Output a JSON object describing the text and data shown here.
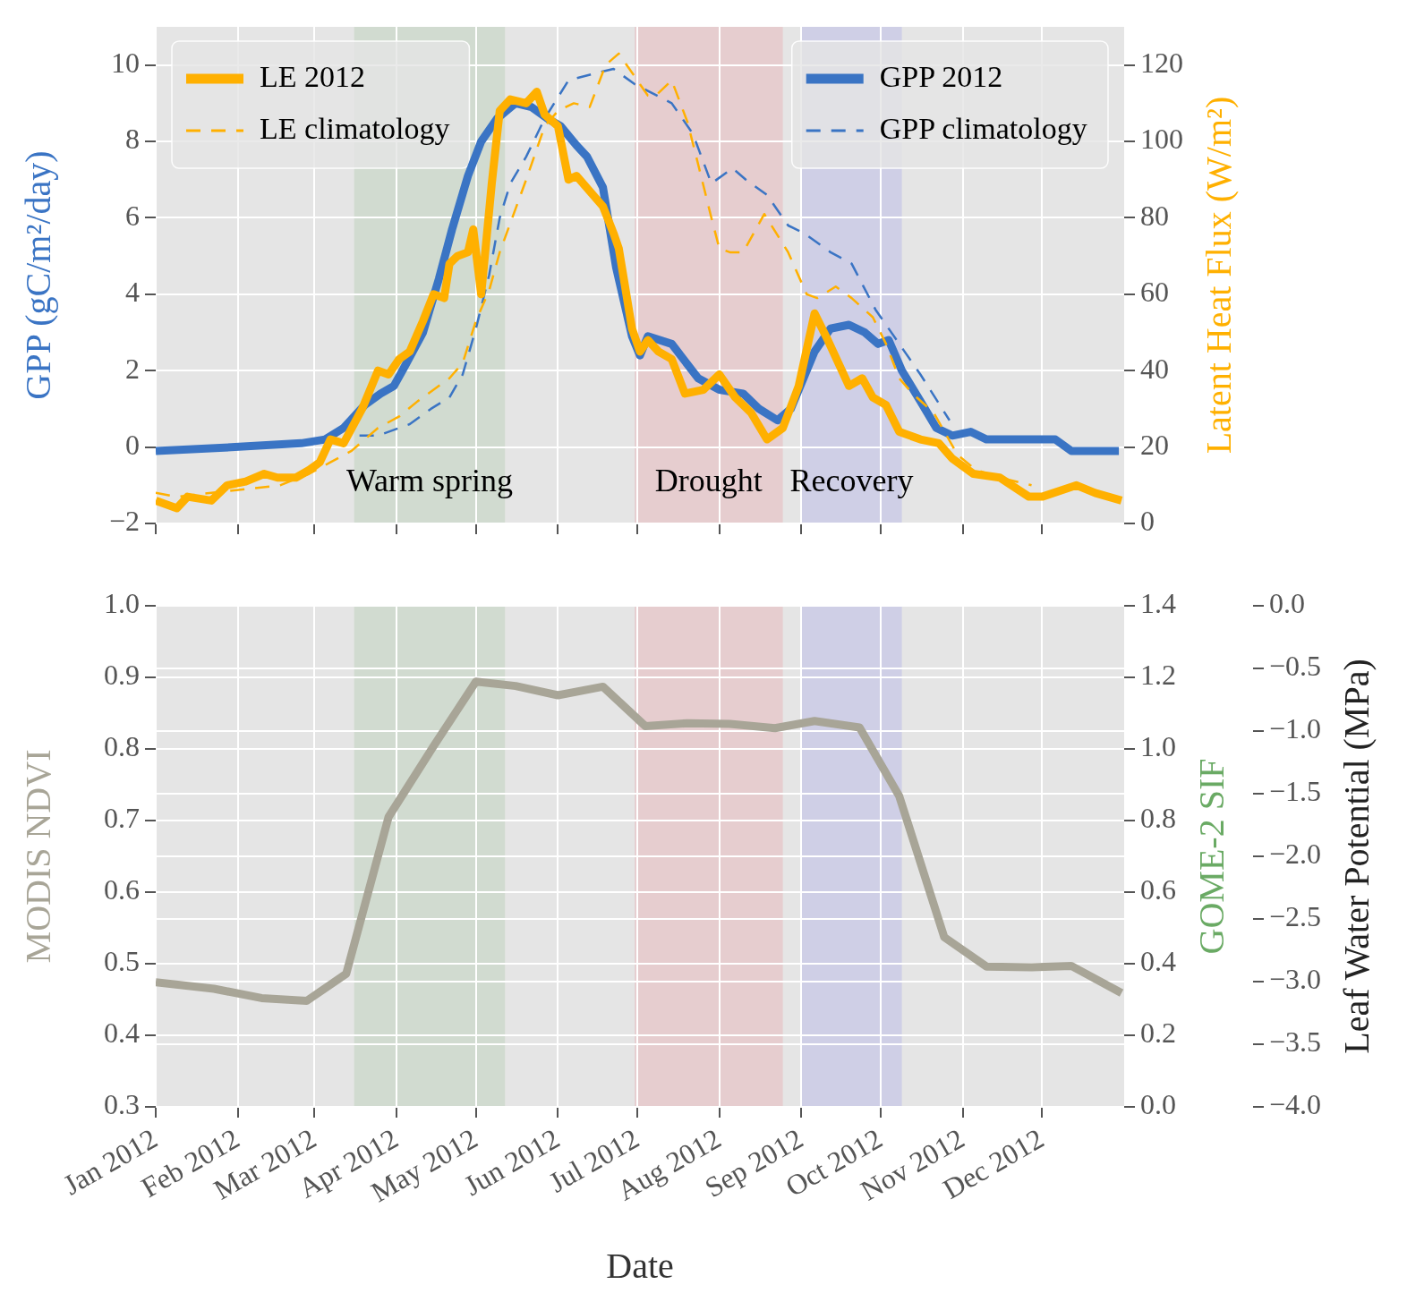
{
  "chart_data": [
    {
      "type": "line",
      "ylabel": "GPP (gC/m²/day)",
      "y2label": "Latent Heat Flux (W/m²)",
      "xlim": [
        "2012-01-01",
        "2013-01-01"
      ],
      "xticks": [
        {
          "value": "2012-01-01",
          "label": null
        },
        {
          "value": "2012-02-01",
          "label": null
        },
        {
          "value": "2012-03-01",
          "label": null
        },
        {
          "value": "2012-04-01",
          "label": null
        },
        {
          "value": "2012-05-01",
          "label": null
        },
        {
          "value": "2012-06-01",
          "label": null
        },
        {
          "value": "2012-07-01",
          "label": null
        },
        {
          "value": "2012-08-01",
          "label": null
        },
        {
          "value": "2012-09-01",
          "label": null
        },
        {
          "value": "2012-10-01",
          "label": null
        },
        {
          "value": "2012-11-01",
          "label": null
        },
        {
          "value": "2012-12-01",
          "label": null
        }
      ],
      "ylim": [
        -2,
        11
      ],
      "yticks": [
        {
          "value": -2,
          "label": "−2"
        },
        0,
        2,
        4,
        6,
        8,
        10
      ],
      "y2lim": [
        0,
        130
      ],
      "y2ticks": [
        0,
        20,
        40,
        60,
        80,
        100,
        120
      ],
      "tick_labels": "y",
      "grid": true,
      "legend": "top",
      "marker": "none",
      "bands": [
        {
          "axis": "x",
          "from": "2012-03-16",
          "to": "2012-05-12",
          "label": "Warm spring",
          "color": "#d1dbd0"
        },
        {
          "axis": "x",
          "from": "2012-06-30",
          "to": "2012-08-25",
          "label": "Drought",
          "color": "#e6cdcf"
        },
        {
          "axis": "x",
          "from": "2012-09-01",
          "to": "2012-10-09",
          "label": "Recovery",
          "color": "#cfcfe6"
        }
      ],
      "series": [
        {
          "name": "LE 2012",
          "color": "#ffb000",
          "axis": "y2",
          "line_style": "solid",
          "x": [
            "2012-01-01",
            "2012-01-09",
            "2012-01-13",
            "2012-01-22",
            "2012-01-28",
            "2012-02-04",
            "2012-02-11",
            "2012-02-16",
            "2012-02-23",
            "2012-02-28",
            "2012-03-03",
            "2012-03-07",
            "2012-03-12",
            "2012-03-19",
            "2012-03-25",
            "2012-03-29",
            "2012-04-02",
            "2012-04-06",
            "2012-04-11",
            "2012-04-15",
            "2012-04-19",
            "2012-04-21",
            "2012-04-24",
            "2012-04-28",
            "2012-04-30",
            "2012-05-03",
            "2012-05-07",
            "2012-05-10",
            "2012-05-14",
            "2012-05-20",
            "2012-05-24",
            "2012-05-27",
            "2012-06-01",
            "2012-06-05",
            "2012-06-08",
            "2012-06-18",
            "2012-06-22",
            "2012-06-24",
            "2012-06-29",
            "2012-07-02",
            "2012-07-05",
            "2012-07-09",
            "2012-07-14",
            "2012-07-19",
            "2012-07-26",
            "2012-08-01",
            "2012-08-07",
            "2012-08-13",
            "2012-08-19",
            "2012-08-25",
            "2012-08-31",
            "2012-09-06",
            "2012-09-11",
            "2012-09-19",
            "2012-09-24",
            "2012-09-28",
            "2012-10-03",
            "2012-10-08",
            "2012-10-16",
            "2012-10-23",
            "2012-10-28",
            "2012-11-05",
            "2012-11-15",
            "2012-11-26",
            "2012-12-01",
            "2012-12-14",
            "2012-12-21",
            "2012-12-31"
          ],
          "values": [
            6,
            4,
            7,
            6,
            10,
            11,
            13,
            12,
            12,
            14,
            16,
            22,
            21,
            30,
            40,
            39,
            43,
            45,
            53,
            60,
            59,
            68,
            70,
            71,
            77,
            60,
            89,
            108,
            111,
            110,
            113,
            107,
            104,
            90,
            91,
            83,
            76,
            72,
            51,
            45,
            48,
            45,
            43,
            34,
            35,
            39,
            33,
            29,
            22,
            25,
            36,
            55,
            48,
            36,
            38,
            33,
            31,
            24,
            22,
            21,
            17,
            13,
            12,
            7,
            7,
            10,
            8,
            6
          ]
        },
        {
          "name": "LE climatology",
          "color": "#ffb000",
          "axis": "y2",
          "line_style": "dashed",
          "x": [
            "2012-01-01",
            "2012-01-09",
            "2012-02-17",
            "2012-02-28",
            "2012-03-07",
            "2012-03-15",
            "2012-03-25",
            "2012-04-02",
            "2012-04-09",
            "2012-04-21",
            "2012-04-26",
            "2012-05-01",
            "2012-05-06",
            "2012-05-10",
            "2012-05-20",
            "2012-05-27",
            "2012-06-01",
            "2012-06-07",
            "2012-06-13",
            "2012-06-19",
            "2012-06-24",
            "2012-07-05",
            "2012-07-08",
            "2012-07-14",
            "2012-07-20",
            "2012-07-24",
            "2012-07-29",
            "2012-08-01",
            "2012-08-05",
            "2012-08-10",
            "2012-08-18",
            "2012-08-27",
            "2012-09-03",
            "2012-09-07",
            "2012-09-14",
            "2012-09-20",
            "2012-09-28",
            "2012-10-03",
            "2012-10-08",
            "2012-10-13",
            "2012-10-21",
            "2012-10-30",
            "2012-11-06",
            "2012-11-15",
            "2012-11-27"
          ],
          "values": [
            8,
            7,
            10,
            13,
            16,
            19,
            25,
            28,
            32,
            38,
            42,
            53,
            61,
            71,
            90,
            104,
            108,
            110,
            109,
            120,
            123,
            112,
            112,
            116,
            105,
            94,
            80,
            72,
            71,
            71,
            81,
            71,
            60,
            59,
            62,
            59,
            54,
            47,
            38,
            34,
            29,
            18,
            14,
            12,
            10
          ]
        },
        {
          "name": "GPP 2012",
          "color": "#3a74c4",
          "line_style": "solid",
          "x": [
            "2012-01-01",
            "2012-01-31",
            "2012-02-25",
            "2012-03-05",
            "2012-03-12",
            "2012-03-20",
            "2012-03-26",
            "2012-03-31",
            "2012-04-04",
            "2012-04-11",
            "2012-04-17",
            "2012-04-22",
            "2012-04-28",
            "2012-05-03",
            "2012-05-09",
            "2012-05-16",
            "2012-05-22",
            "2012-05-28",
            "2012-06-02",
            "2012-06-08",
            "2012-06-12",
            "2012-06-18",
            "2012-06-23",
            "2012-06-29",
            "2012-07-02",
            "2012-07-05",
            "2012-07-14",
            "2012-07-24",
            "2012-08-01",
            "2012-08-10",
            "2012-08-16",
            "2012-08-23",
            "2012-08-28",
            "2012-09-06",
            "2012-09-12",
            "2012-09-19",
            "2012-09-25",
            "2012-09-30",
            "2012-10-04",
            "2012-10-09",
            "2012-10-16",
            "2012-10-22",
            "2012-10-28",
            "2012-11-04",
            "2012-11-10",
            "2012-11-23",
            "2012-12-06",
            "2012-12-12",
            "2012-12-30"
          ],
          "values": [
            -0.1,
            0.0,
            0.1,
            0.2,
            0.5,
            1.1,
            1.4,
            1.6,
            2.1,
            3.0,
            4.4,
            5.7,
            7.1,
            8.0,
            8.6,
            9.0,
            8.9,
            8.6,
            8.4,
            7.9,
            7.6,
            6.8,
            4.7,
            2.9,
            2.4,
            2.9,
            2.7,
            1.8,
            1.5,
            1.4,
            1.0,
            0.7,
            1.0,
            2.5,
            3.1,
            3.2,
            3.0,
            2.7,
            2.8,
            2.0,
            1.2,
            0.5,
            0.3,
            0.4,
            0.2,
            0.2,
            0.2,
            -0.1,
            -0.1
          ]
        },
        {
          "name": "GPP climatology",
          "color": "#3a74c4",
          "line_style": "dashed",
          "x": [
            "2012-03-18",
            "2012-03-25",
            "2012-04-02",
            "2012-04-06",
            "2012-04-14",
            "2012-04-21",
            "2012-04-26",
            "2012-05-01",
            "2012-05-06",
            "2012-05-10",
            "2012-05-14",
            "2012-05-20",
            "2012-05-27",
            "2012-06-05",
            "2012-06-16",
            "2012-06-22",
            "2012-06-30",
            "2012-07-14",
            "2012-07-22",
            "2012-07-29",
            "2012-08-06",
            "2012-08-11",
            "2012-08-19",
            "2012-08-27",
            "2012-09-02",
            "2012-09-12",
            "2012-09-20",
            "2012-09-29",
            "2012-10-09",
            "2012-10-16",
            "2012-10-27"
          ],
          "values": [
            0.3,
            0.3,
            0.5,
            0.6,
            1.0,
            1.3,
            1.9,
            3.1,
            4.5,
            6.0,
            6.9,
            7.6,
            8.6,
            9.6,
            9.8,
            9.9,
            9.5,
            9.0,
            8.2,
            6.9,
            7.3,
            7.0,
            6.6,
            5.8,
            5.6,
            5.1,
            4.8,
            3.6,
            2.6,
            1.9,
            0.7
          ]
        }
      ]
    },
    {
      "type": "line",
      "xlabel": "Date",
      "ylabel": "MODIS NDVI",
      "y2label": "GOME-2 SIF",
      "y3label": "Leaf Water Potential (MPa)",
      "xlim": [
        "2012-01-01",
        "2013-01-01"
      ],
      "xticks": [
        {
          "value": "2012-01-01",
          "label": "Jan 2012"
        },
        {
          "value": "2012-02-01",
          "label": "Feb 2012"
        },
        {
          "value": "2012-03-01",
          "label": "Mar 2012"
        },
        {
          "value": "2012-04-01",
          "label": "Apr 2012"
        },
        {
          "value": "2012-05-01",
          "label": "May 2012"
        },
        {
          "value": "2012-06-01",
          "label": "Jun 2012"
        },
        {
          "value": "2012-07-01",
          "label": "Jul 2012"
        },
        {
          "value": "2012-08-01",
          "label": "Aug 2012"
        },
        {
          "value": "2012-09-01",
          "label": "Sep 2012"
        },
        {
          "value": "2012-10-01",
          "label": "Oct 2012"
        },
        {
          "value": "2012-11-01",
          "label": "Nov 2012"
        },
        {
          "value": "2012-12-01",
          "label": "Dec 2012"
        }
      ],
      "ylim": [
        0.3,
        1.0
      ],
      "yticks": [
        0.3,
        0.4,
        0.5,
        0.6,
        0.7,
        0.8,
        0.9,
        {
          "value": 1.0,
          "label": "1.0"
        }
      ],
      "y2lim": [
        0,
        1.4
      ],
      "y2ticks": [
        {
          "value": 0,
          "label": "0.0"
        },
        0.2,
        0.4,
        0.6,
        0.8,
        {
          "value": 1.0,
          "label": "1.0"
        },
        1.2,
        1.4
      ],
      "y3lim": [
        -4,
        0
      ],
      "y3ticks": [
        {
          "value": -4,
          "label": "−4.0"
        },
        {
          "value": -3.5,
          "label": "−3.5"
        },
        {
          "value": -3,
          "label": "−3.0"
        },
        {
          "value": -2.5,
          "label": "−2.5"
        },
        {
          "value": -2,
          "label": "−2.0"
        },
        {
          "value": -1.5,
          "label": "−1.5"
        },
        {
          "value": -1,
          "label": "−1.0"
        },
        {
          "value": -0.5,
          "label": "−0.5"
        },
        {
          "value": 0,
          "label": "0.0"
        }
      ],
      "grid": true,
      "marker": "none",
      "bands": [
        {
          "axis": "x",
          "from": "2012-03-16",
          "to": "2012-05-12",
          "color": "#d1dbd0"
        },
        {
          "axis": "x",
          "from": "2012-06-30",
          "to": "2012-08-25",
          "color": "#e6cdcf"
        },
        {
          "axis": "x",
          "from": "2012-09-01",
          "to": "2012-10-09",
          "color": "#cfcfe6"
        }
      ],
      "series": [
        {
          "color": "#a8a597",
          "line_style": "solid",
          "x": [
            "2012-01-01",
            "2012-01-23",
            "2012-02-10",
            "2012-02-27",
            "2012-03-13",
            "2012-03-29",
            "2012-04-15",
            "2012-05-01",
            "2012-05-16",
            "2012-06-01",
            "2012-06-18",
            "2012-07-04",
            "2012-07-20",
            "2012-08-05",
            "2012-08-22",
            "2012-09-06",
            "2012-09-23",
            "2012-10-08",
            "2012-10-25",
            "2012-11-10",
            "2012-11-27",
            "2012-12-12",
            "2012-12-31"
          ],
          "values": [
            0.474,
            0.465,
            0.452,
            0.448,
            0.486,
            0.705,
            0.804,
            0.894,
            0.888,
            0.875,
            0.887,
            0.832,
            0.836,
            0.835,
            0.829,
            0.839,
            0.83,
            0.734,
            0.537,
            0.496,
            0.495,
            0.497,
            0.459
          ]
        }
      ]
    }
  ]
}
